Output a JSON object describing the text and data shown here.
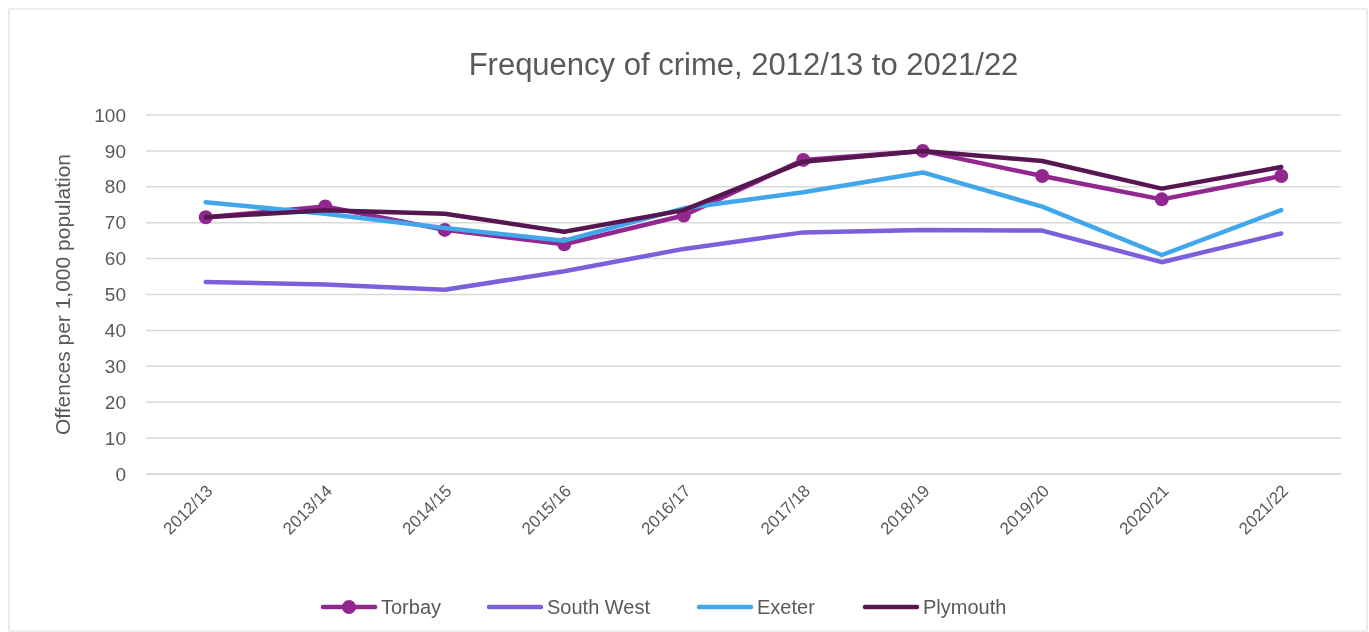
{
  "chart_data": {
    "type": "line",
    "title": "Frequency of crime, 2012/13 to 2021/22",
    "ylabel": "Offences per 1,000 population",
    "categories": [
      "2012/13",
      "2013/14",
      "2014/15",
      "2015/16",
      "2016/17",
      "2017/18",
      "2018/19",
      "2019/20",
      "2020/21",
      "2021/22"
    ],
    "series": [
      {
        "name": "Torbay",
        "color": "#92278f",
        "marker": "circle",
        "values": [
          71.5,
          74.5,
          68,
          64,
          72,
          87.5,
          90,
          83,
          76.5,
          83
        ]
      },
      {
        "name": "South West",
        "color": "#7b5fdb",
        "marker": "none",
        "values": [
          53.5,
          52.8,
          51.3,
          56.5,
          62.7,
          67.3,
          68,
          67.8,
          59,
          67
        ]
      },
      {
        "name": "Exeter",
        "color": "#41a7ea",
        "marker": "none",
        "values": [
          75.7,
          72.5,
          68.5,
          65,
          74,
          78.5,
          84,
          74.5,
          61,
          73.5
        ]
      },
      {
        "name": "Plymouth",
        "color": "#561650",
        "marker": "none",
        "values": [
          71.5,
          73.5,
          72.5,
          67.5,
          73.5,
          87,
          90,
          87.2,
          79.5,
          85.5
        ]
      }
    ],
    "ylim": [
      0,
      100
    ],
    "yticks": [
      0,
      10,
      20,
      30,
      40,
      50,
      60,
      70,
      80,
      90,
      100
    ],
    "grid": "y",
    "legend": "bottom"
  }
}
